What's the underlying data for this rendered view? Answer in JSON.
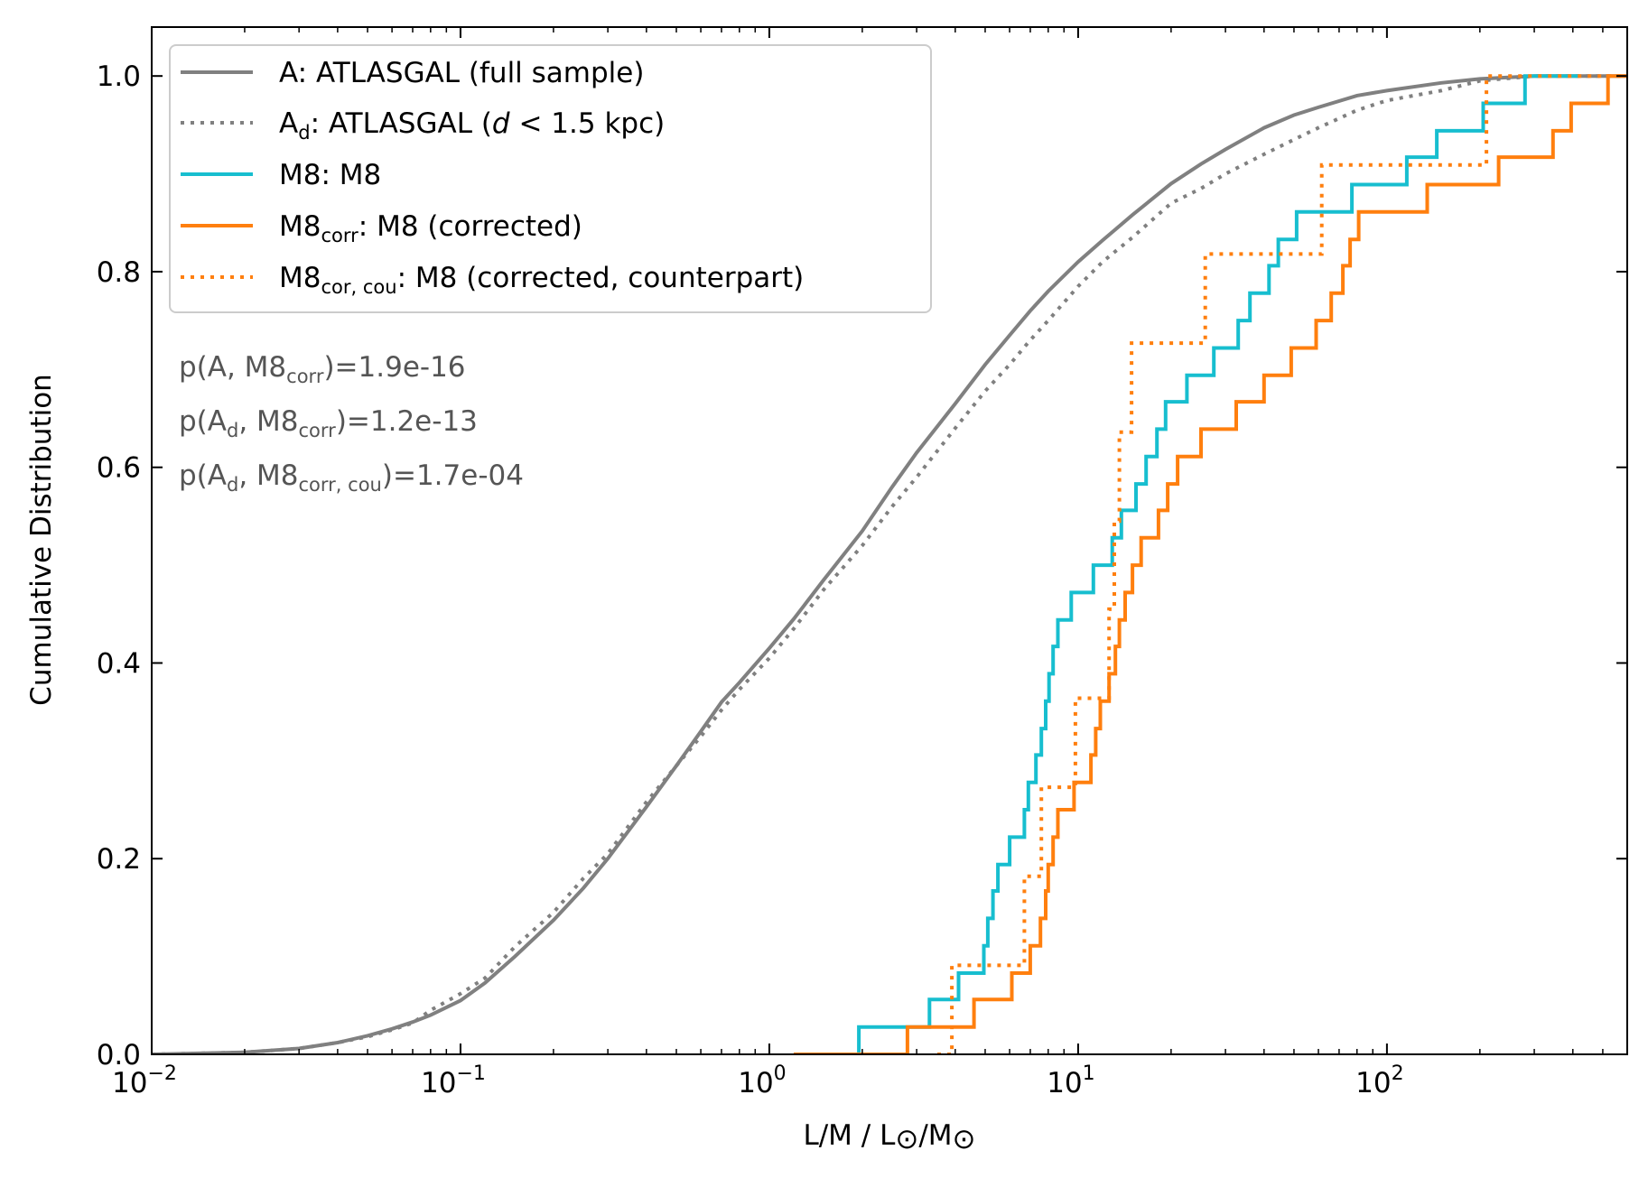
{
  "chart_data": {
    "type": "line",
    "subtype": "cumulative-step",
    "xlabel": "L/M / L⊙/M⊙",
    "ylabel": "Cumulative Distribution",
    "xscale": "log",
    "xlim": [
      0.01,
      600
    ],
    "ylim": [
      0.0,
      1.05
    ],
    "x_ticks": [
      {
        "value": 0.01,
        "base": "10",
        "exp": "−2"
      },
      {
        "value": 0.1,
        "base": "10",
        "exp": "−1"
      },
      {
        "value": 1,
        "base": "10",
        "exp": "0"
      },
      {
        "value": 10,
        "base": "10",
        "exp": "1"
      },
      {
        "value": 100,
        "base": "10",
        "exp": "2"
      }
    ],
    "y_ticks": [
      {
        "value": 0.0,
        "label": "0.0"
      },
      {
        "value": 0.2,
        "label": "0.2"
      },
      {
        "value": 0.4,
        "label": "0.4"
      },
      {
        "value": 0.6,
        "label": "0.6"
      },
      {
        "value": 0.8,
        "label": "0.8"
      },
      {
        "value": 1.0,
        "label": "1.0"
      }
    ],
    "series": [
      {
        "key": "A",
        "name": "A: ATLASGAL (full sample)",
        "color": "#808080",
        "style": "solid",
        "step": false,
        "points": [
          [
            0.01,
            0.0
          ],
          [
            0.02,
            0.002
          ],
          [
            0.03,
            0.006
          ],
          [
            0.04,
            0.012
          ],
          [
            0.05,
            0.019
          ],
          [
            0.06,
            0.026
          ],
          [
            0.07,
            0.033
          ],
          [
            0.08,
            0.04
          ],
          [
            0.1,
            0.055
          ],
          [
            0.12,
            0.073
          ],
          [
            0.15,
            0.1
          ],
          [
            0.2,
            0.137
          ],
          [
            0.25,
            0.17
          ],
          [
            0.3,
            0.2
          ],
          [
            0.4,
            0.253
          ],
          [
            0.5,
            0.295
          ],
          [
            0.6,
            0.33
          ],
          [
            0.7,
            0.36
          ],
          [
            0.8,
            0.38
          ],
          [
            1.0,
            0.415
          ],
          [
            1.2,
            0.445
          ],
          [
            1.5,
            0.485
          ],
          [
            2.0,
            0.535
          ],
          [
            2.5,
            0.58
          ],
          [
            3.0,
            0.615
          ],
          [
            4.0,
            0.665
          ],
          [
            5.0,
            0.705
          ],
          [
            6.0,
            0.735
          ],
          [
            7.0,
            0.76
          ],
          [
            8.0,
            0.78
          ],
          [
            10.0,
            0.81
          ],
          [
            12.0,
            0.832
          ],
          [
            15.0,
            0.858
          ],
          [
            20.0,
            0.89
          ],
          [
            25.0,
            0.91
          ],
          [
            30.0,
            0.925
          ],
          [
            40.0,
            0.947
          ],
          [
            50.0,
            0.96
          ],
          [
            60.0,
            0.968
          ],
          [
            80.0,
            0.98
          ],
          [
            100.0,
            0.985
          ],
          [
            150.0,
            0.993
          ],
          [
            200.0,
            0.997
          ],
          [
            300.0,
            1.0
          ],
          [
            600.0,
            1.0
          ]
        ]
      },
      {
        "key": "Ad",
        "name": "Ad: ATLASGAL (d < 1.5 kpc)",
        "label_main": "A",
        "label_sub": "d",
        "label_rest_a": ": ATLASGAL (",
        "label_italic": "d",
        "label_rest_b": " < 1.5 kpc)",
        "color": "#808080",
        "style": "dotted",
        "step": false,
        "points": [
          [
            0.01,
            0.0
          ],
          [
            0.02,
            0.002
          ],
          [
            0.03,
            0.006
          ],
          [
            0.04,
            0.012
          ],
          [
            0.05,
            0.018
          ],
          [
            0.06,
            0.025
          ],
          [
            0.07,
            0.032
          ],
          [
            0.08,
            0.045
          ],
          [
            0.1,
            0.062
          ],
          [
            0.12,
            0.078
          ],
          [
            0.15,
            0.11
          ],
          [
            0.2,
            0.145
          ],
          [
            0.25,
            0.18
          ],
          [
            0.3,
            0.205
          ],
          [
            0.4,
            0.258
          ],
          [
            0.5,
            0.295
          ],
          [
            0.6,
            0.325
          ],
          [
            0.7,
            0.352
          ],
          [
            0.8,
            0.373
          ],
          [
            1.0,
            0.405
          ],
          [
            1.2,
            0.435
          ],
          [
            1.5,
            0.475
          ],
          [
            2.0,
            0.52
          ],
          [
            2.5,
            0.56
          ],
          [
            3.0,
            0.59
          ],
          [
            4.0,
            0.64
          ],
          [
            5.0,
            0.678
          ],
          [
            6.0,
            0.705
          ],
          [
            7.0,
            0.73
          ],
          [
            8.0,
            0.75
          ],
          [
            10.0,
            0.785
          ],
          [
            12.0,
            0.81
          ],
          [
            15.0,
            0.835
          ],
          [
            20.0,
            0.87
          ],
          [
            25.0,
            0.885
          ],
          [
            30.0,
            0.9
          ],
          [
            40.0,
            0.92
          ],
          [
            50.0,
            0.935
          ],
          [
            60.0,
            0.947
          ],
          [
            80.0,
            0.965
          ],
          [
            100.0,
            0.975
          ],
          [
            150.0,
            0.985
          ],
          [
            200.0,
            0.995
          ],
          [
            300.0,
            1.0
          ],
          [
            600.0,
            1.0
          ]
        ]
      },
      {
        "key": "M8",
        "name": "M8: M8",
        "color": "#17becf",
        "style": "solid",
        "step": true,
        "points": [
          [
            1.2,
            0.0
          ],
          [
            1.95,
            0.028
          ],
          [
            3.3,
            0.056
          ],
          [
            4.1,
            0.083
          ],
          [
            4.95,
            0.111
          ],
          [
            5.1,
            0.139
          ],
          [
            5.3,
            0.167
          ],
          [
            5.5,
            0.194
          ],
          [
            6.0,
            0.222
          ],
          [
            6.7,
            0.25
          ],
          [
            6.9,
            0.278
          ],
          [
            7.3,
            0.306
          ],
          [
            7.6,
            0.333
          ],
          [
            7.85,
            0.361
          ],
          [
            8.05,
            0.389
          ],
          [
            8.3,
            0.417
          ],
          [
            8.6,
            0.444
          ],
          [
            9.5,
            0.472
          ],
          [
            11.2,
            0.5
          ],
          [
            12.9,
            0.528
          ],
          [
            13.8,
            0.556
          ],
          [
            15.4,
            0.583
          ],
          [
            16.6,
            0.611
          ],
          [
            18.0,
            0.639
          ],
          [
            19.2,
            0.667
          ],
          [
            22.5,
            0.694
          ],
          [
            27.5,
            0.722
          ],
          [
            33.0,
            0.75
          ],
          [
            36.0,
            0.778
          ],
          [
            41.5,
            0.806
          ],
          [
            44.5,
            0.833
          ],
          [
            51.0,
            0.861
          ],
          [
            77.0,
            0.889
          ],
          [
            116.0,
            0.917
          ],
          [
            145.0,
            0.944
          ],
          [
            205.0,
            0.972
          ],
          [
            280.0,
            1.0
          ],
          [
            420.0,
            1.0
          ]
        ]
      },
      {
        "key": "M8corr",
        "name": "M8corr: M8 (corrected)",
        "label_main": "M8",
        "label_sub": "corr",
        "label_rest": ": M8 (corrected)",
        "color": "#ff7f0e",
        "style": "solid",
        "step": true,
        "points": [
          [
            1.2,
            0.0
          ],
          [
            2.8,
            0.028
          ],
          [
            4.6,
            0.056
          ],
          [
            6.1,
            0.083
          ],
          [
            7.0,
            0.111
          ],
          [
            7.55,
            0.139
          ],
          [
            7.85,
            0.167
          ],
          [
            8.0,
            0.194
          ],
          [
            8.3,
            0.222
          ],
          [
            8.6,
            0.25
          ],
          [
            9.7,
            0.278
          ],
          [
            11.0,
            0.306
          ],
          [
            11.4,
            0.333
          ],
          [
            11.8,
            0.361
          ],
          [
            12.6,
            0.389
          ],
          [
            13.2,
            0.417
          ],
          [
            13.6,
            0.444
          ],
          [
            14.2,
            0.472
          ],
          [
            15.0,
            0.5
          ],
          [
            16.0,
            0.528
          ],
          [
            18.2,
            0.556
          ],
          [
            19.5,
            0.583
          ],
          [
            21.0,
            0.611
          ],
          [
            25.0,
            0.639
          ],
          [
            32.5,
            0.667
          ],
          [
            40.0,
            0.694
          ],
          [
            49.0,
            0.722
          ],
          [
            59.0,
            0.75
          ],
          [
            66.0,
            0.778
          ],
          [
            72.0,
            0.806
          ],
          [
            76.0,
            0.833
          ],
          [
            81.0,
            0.861
          ],
          [
            135.0,
            0.889
          ],
          [
            230.0,
            0.917
          ],
          [
            345.0,
            0.944
          ],
          [
            395.0,
            0.972
          ],
          [
            520.0,
            1.0
          ],
          [
            600.0,
            1.0
          ]
        ]
      },
      {
        "key": "M8corcou",
        "name": "M8cor,cou: M8 (corrected, counterpart)",
        "label_main": "M8",
        "label_sub": "cor, cou",
        "label_rest": ": M8 (corrected, counterpart)",
        "color": "#ff7f0e",
        "style": "dotted",
        "step": true,
        "points": [
          [
            3.5,
            0.0
          ],
          [
            3.9,
            0.091
          ],
          [
            6.7,
            0.182
          ],
          [
            7.6,
            0.273
          ],
          [
            9.8,
            0.364
          ],
          [
            12.6,
            0.455
          ],
          [
            13.1,
            0.545
          ],
          [
            13.6,
            0.636
          ],
          [
            14.9,
            0.727
          ],
          [
            25.8,
            0.818
          ],
          [
            61.5,
            0.909
          ],
          [
            210.0,
            1.0
          ],
          [
            600.0,
            1.0
          ]
        ]
      }
    ],
    "legend_position": "top-left",
    "annotations": [
      {
        "pre": "p(A, M8",
        "sub": "corr",
        "post": ")=1.9e-16",
        "a_sub": ""
      },
      {
        "pre": "p(A",
        "a_sub": "d",
        "mid": ", M8",
        "sub": "corr",
        "post": ")=1.2e-13"
      },
      {
        "pre": "p(A",
        "a_sub": "d",
        "mid": ", M8",
        "sub": "corr, cou",
        "post": ")=1.7e-04"
      }
    ]
  }
}
